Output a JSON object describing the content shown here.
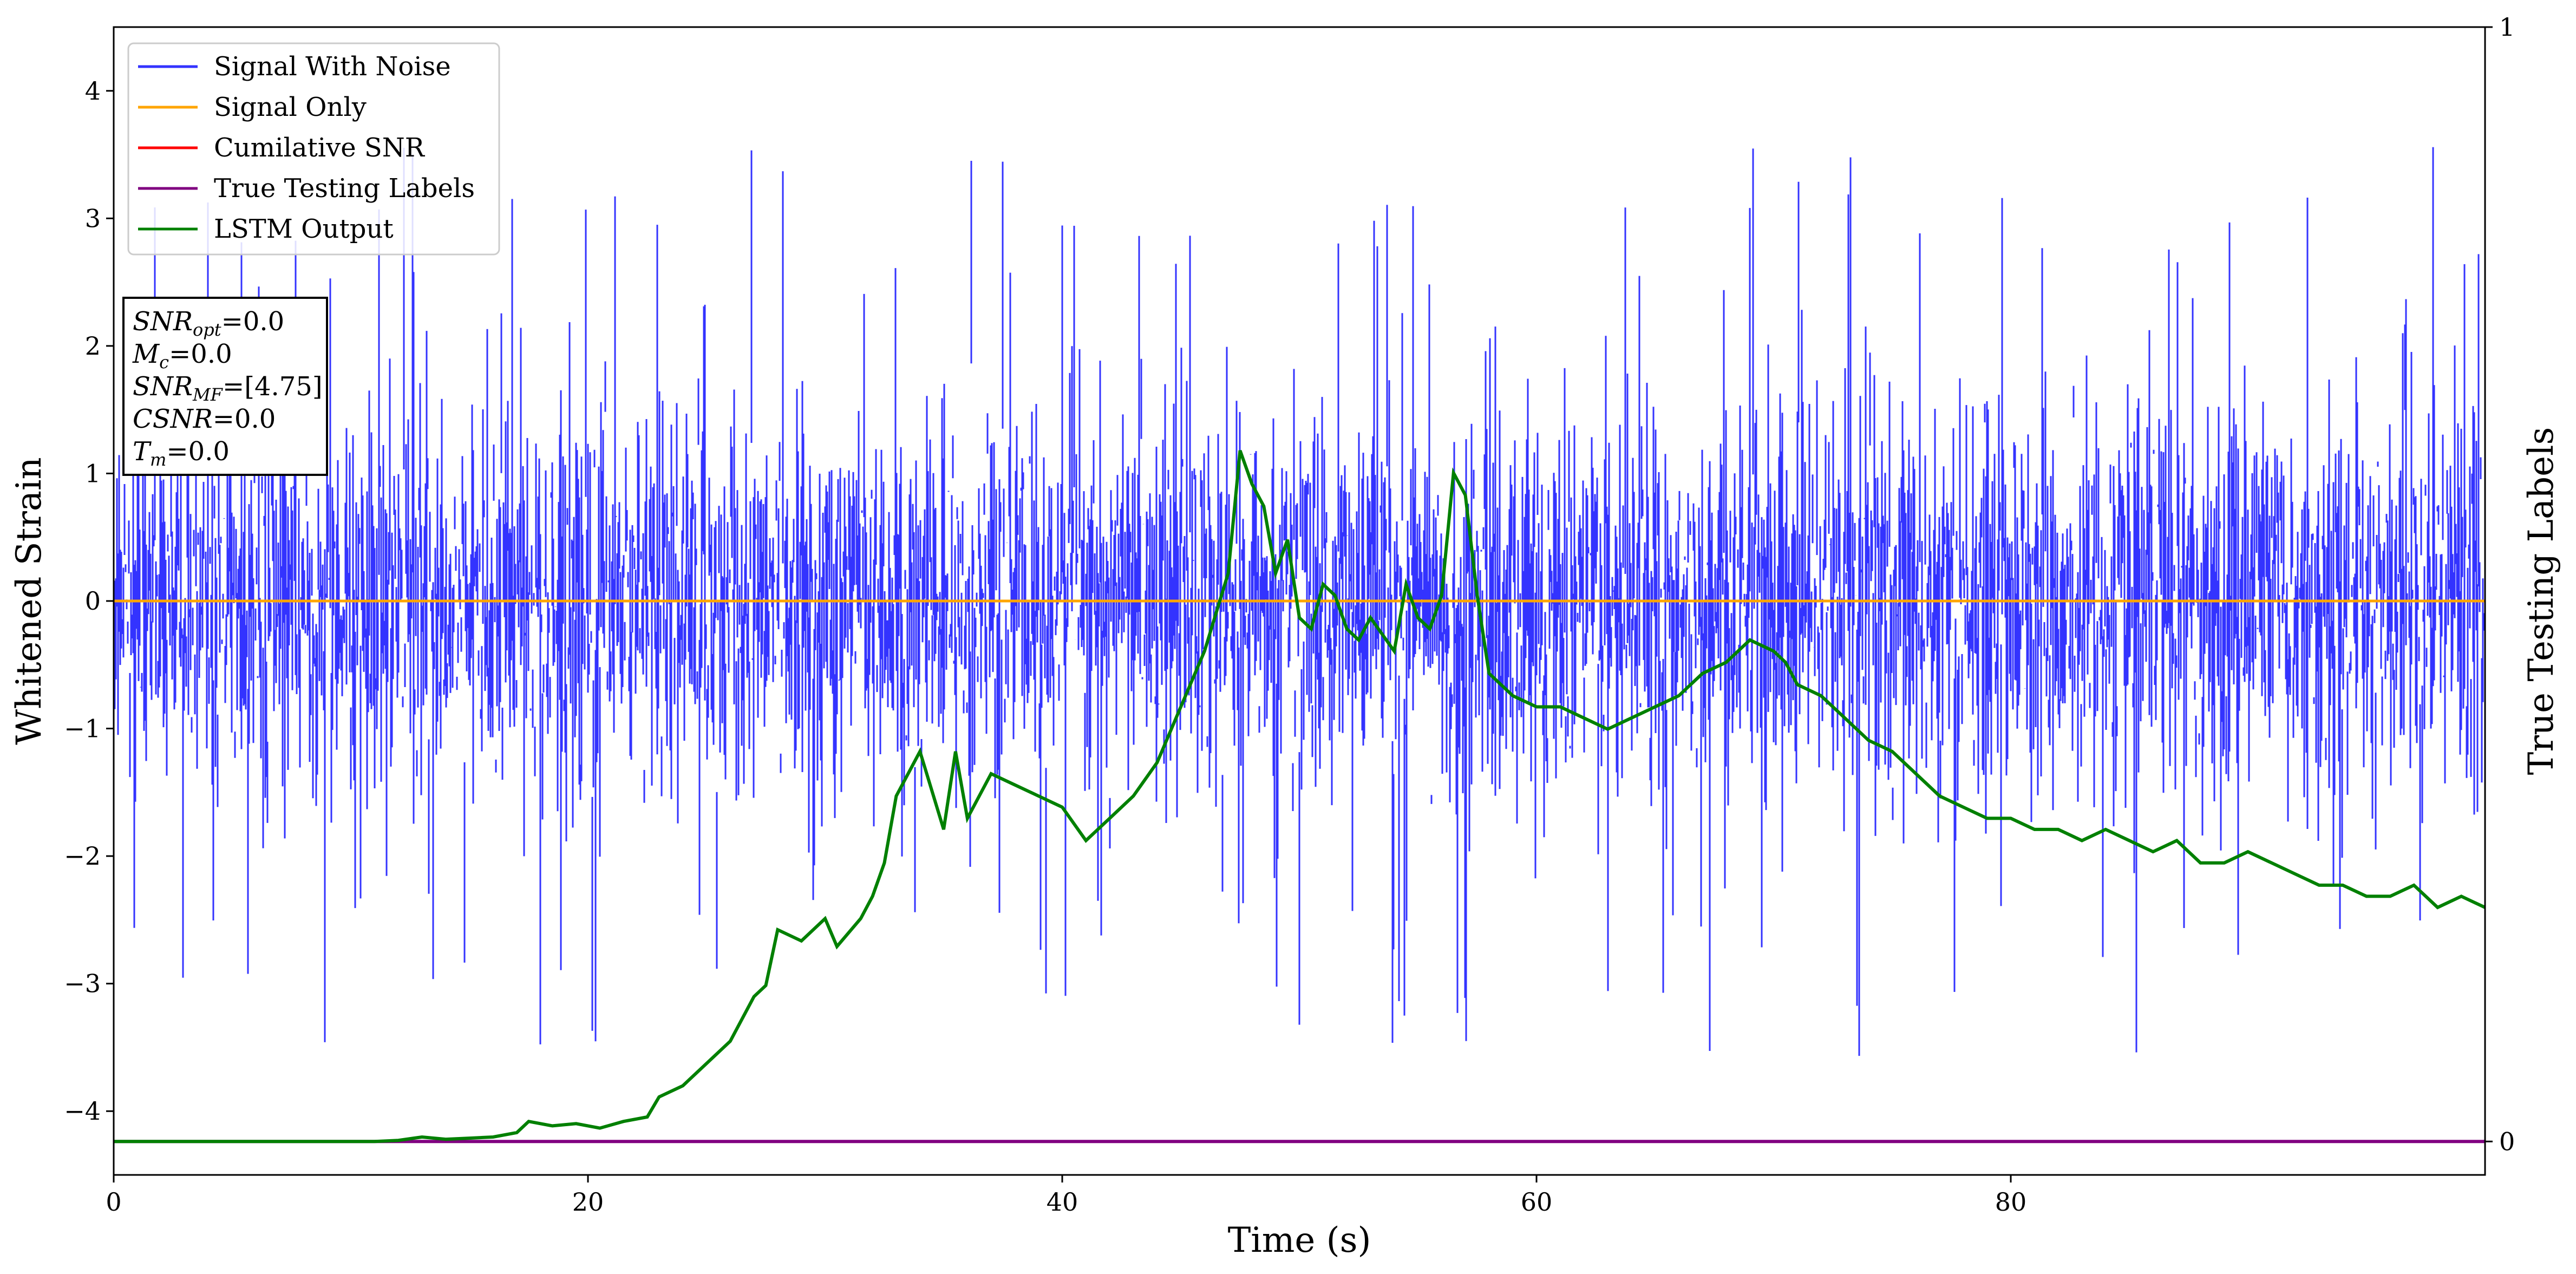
{
  "chart_data": {
    "type": "line",
    "xlabel": "Time (s)",
    "ylabel": "Whitened Strain",
    "y2label": "True Testing Labels",
    "xlim": [
      0,
      100
    ],
    "ylim": [
      -4.5,
      4.5
    ],
    "y2lim": [
      -0.03,
      1
    ],
    "xticks": [
      "0",
      "20",
      "40",
      "60",
      "80"
    ],
    "yticks": [
      "4",
      "3",
      "2",
      "1",
      "0",
      "−1",
      "−2",
      "−3",
      "−4"
    ],
    "y2ticks": [
      "1",
      "0"
    ],
    "legend_position": "top-left",
    "grid": false,
    "colors": {
      "noise": "#3333ff",
      "signal": "#ffa500",
      "csnr": "#ff0000",
      "labels": "#800080",
      "lstm": "#008000"
    },
    "series": [
      {
        "name": "Signal With Noise",
        "key": "noise",
        "description": "dense noise band, typically about −1.5 to 1.5 with spikes near ±3.5"
      },
      {
        "name": "Signal Only",
        "key": "signal",
        "y": 0
      },
      {
        "name": "Cumilative SNR",
        "key": "csnr",
        "y": 0
      },
      {
        "name": "True Testing Labels",
        "key": "labels",
        "y2": 0
      },
      {
        "name": "LSTM Output",
        "key": "lstm",
        "points": [
          [
            0,
            0.0
          ],
          [
            11,
            0.0
          ],
          [
            12,
            0.001
          ],
          [
            13,
            0.004
          ],
          [
            14,
            0.002
          ],
          [
            15,
            0.003
          ],
          [
            16,
            0.004
          ],
          [
            17,
            0.008
          ],
          [
            17.5,
            0.018
          ],
          [
            18.5,
            0.014
          ],
          [
            19.5,
            0.016
          ],
          [
            20.5,
            0.012
          ],
          [
            21.5,
            0.018
          ],
          [
            22.5,
            0.022
          ],
          [
            23,
            0.04
          ],
          [
            24,
            0.05
          ],
          [
            25,
            0.07
          ],
          [
            26,
            0.09
          ],
          [
            27,
            0.13
          ],
          [
            27.5,
            0.14
          ],
          [
            28,
            0.19
          ],
          [
            29,
            0.18
          ],
          [
            30,
            0.2
          ],
          [
            30.5,
            0.175
          ],
          [
            31.5,
            0.2
          ],
          [
            32,
            0.22
          ],
          [
            32.5,
            0.25
          ],
          [
            33,
            0.31
          ],
          [
            34,
            0.35
          ],
          [
            35,
            0.28
          ],
          [
            35.5,
            0.35
          ],
          [
            36,
            0.29
          ],
          [
            37,
            0.33
          ],
          [
            38,
            0.32
          ],
          [
            39,
            0.31
          ],
          [
            40,
            0.3
          ],
          [
            41,
            0.27
          ],
          [
            42,
            0.29
          ],
          [
            43,
            0.31
          ],
          [
            44,
            0.34
          ],
          [
            45,
            0.39
          ],
          [
            46,
            0.44
          ],
          [
            47,
            0.51
          ],
          [
            47.5,
            0.62
          ],
          [
            48,
            0.59
          ],
          [
            48.5,
            0.57
          ],
          [
            49,
            0.51
          ],
          [
            49.5,
            0.54
          ],
          [
            50,
            0.47
          ],
          [
            50.5,
            0.46
          ],
          [
            51,
            0.5
          ],
          [
            51.5,
            0.49
          ],
          [
            52,
            0.46
          ],
          [
            52.5,
            0.45
          ],
          [
            53,
            0.47
          ],
          [
            54,
            0.44
          ],
          [
            54.5,
            0.5
          ],
          [
            55,
            0.47
          ],
          [
            55.5,
            0.46
          ],
          [
            56,
            0.49
          ],
          [
            56.5,
            0.6
          ],
          [
            57,
            0.58
          ],
          [
            57.5,
            0.49
          ],
          [
            58,
            0.42
          ],
          [
            59,
            0.4
          ],
          [
            60,
            0.39
          ],
          [
            61,
            0.39
          ],
          [
            62,
            0.38
          ],
          [
            63,
            0.37
          ],
          [
            64,
            0.38
          ],
          [
            65,
            0.39
          ],
          [
            66,
            0.4
          ],
          [
            67,
            0.42
          ],
          [
            68,
            0.43
          ],
          [
            69,
            0.45
          ],
          [
            70,
            0.44
          ],
          [
            70.5,
            0.43
          ],
          [
            71,
            0.41
          ],
          [
            72,
            0.4
          ],
          [
            73,
            0.38
          ],
          [
            74,
            0.36
          ],
          [
            75,
            0.35
          ],
          [
            76,
            0.33
          ],
          [
            77,
            0.31
          ],
          [
            78,
            0.3
          ],
          [
            79,
            0.29
          ],
          [
            80,
            0.29
          ],
          [
            81,
            0.28
          ],
          [
            82,
            0.28
          ],
          [
            83,
            0.27
          ],
          [
            84,
            0.28
          ],
          [
            85,
            0.27
          ],
          [
            86,
            0.26
          ],
          [
            87,
            0.27
          ],
          [
            88,
            0.25
          ],
          [
            89,
            0.25
          ],
          [
            90,
            0.26
          ],
          [
            91,
            0.25
          ],
          [
            92,
            0.24
          ],
          [
            93,
            0.23
          ],
          [
            94,
            0.23
          ],
          [
            95,
            0.22
          ],
          [
            96,
            0.22
          ],
          [
            97,
            0.23
          ],
          [
            98,
            0.21
          ],
          [
            99,
            0.22
          ],
          [
            100,
            0.21
          ]
        ]
      }
    ],
    "info_box": {
      "snr_opt_main": "SNR",
      "snr_opt_sub": "opt",
      "snr_opt_val": "=0.0",
      "mc_main": "M",
      "mc_sub": "c",
      "mc_val": "=0.0",
      "snr_mf_main": "SNR",
      "snr_mf_sub": "MF",
      "snr_mf_val": "=[4.75]",
      "csnr_main": "CSNR",
      "csnr_val": "=0.0",
      "tm_main": "T",
      "tm_sub": "m",
      "tm_val": "=0.0"
    }
  }
}
